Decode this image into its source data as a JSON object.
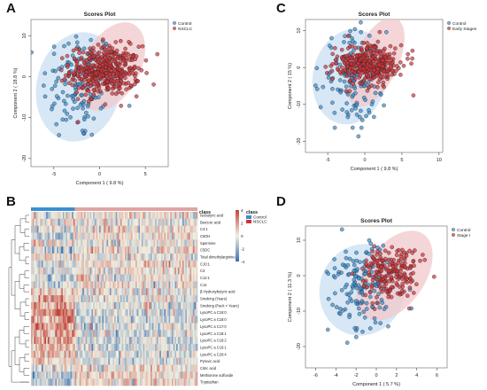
{
  "panels": {
    "a": {
      "letter": "A"
    },
    "b": {
      "letter": "B"
    },
    "c": {
      "letter": "C"
    },
    "d": {
      "letter": "D"
    }
  },
  "colors": {
    "control": "#3a8fd0",
    "case": "#d0343a",
    "control_ellipse": "#c9dff3",
    "case_ellipse": "#f2c8cb",
    "heat_low": "#3a6fb0",
    "heat_mid": "#f2efe0",
    "heat_high": "#c1443a"
  },
  "chart_data": [
    {
      "id": "A",
      "type": "scatter",
      "title": "Scores Plot",
      "xlabel": "Component 1 ( 9.8 %)",
      "ylabel": "Component 2 ( 18.8 %)",
      "xlim": [
        -7.5,
        7.5
      ],
      "ylim": [
        -22,
        14
      ],
      "xticks": [
        -5,
        0,
        5
      ],
      "yticks": [
        -20,
        -10,
        0,
        10
      ],
      "legend_position": "top-right",
      "series": [
        {
          "name": "Control",
          "count": 130,
          "center": [
            -2.3,
            -2.0
          ],
          "spread": [
            2.0,
            7.0
          ]
        },
        {
          "name": "NSCLC",
          "count": 420,
          "center": [
            0.6,
            1.5
          ],
          "spread": [
            1.9,
            3.0
          ]
        }
      ],
      "ellipses": [
        {
          "series": "Control",
          "center": [
            -2.3,
            -2.5
          ],
          "rx": 4.6,
          "ry": 13.5,
          "angle": 12
        },
        {
          "series": "NSCLC",
          "center": [
            1.3,
            2.5
          ],
          "rx": 5.2,
          "ry": 7.0,
          "angle": -62
        }
      ]
    },
    {
      "id": "C",
      "type": "scatter",
      "title": "Scores Plot",
      "xlabel": "Component 1 ( 9.8 %)",
      "ylabel": "Component 2 ( 15 %)",
      "xlim": [
        -8,
        10.5
      ],
      "ylim": [
        -23,
        13
      ],
      "xticks": [
        -5,
        0,
        5,
        10
      ],
      "yticks": [
        -20,
        -10,
        0,
        10
      ],
      "legend_position": "top-right",
      "series": [
        {
          "name": "Control",
          "count": 140,
          "center": [
            -1.7,
            -3.0
          ],
          "spread": [
            2.1,
            6.5
          ]
        },
        {
          "name": "Early Stages",
          "count": 360,
          "center": [
            0.6,
            0.8
          ],
          "spread": [
            2.2,
            2.5
          ]
        }
      ],
      "ellipses": [
        {
          "series": "Control",
          "center": [
            -2.0,
            -2.5
          ],
          "rx": 5.0,
          "ry": 13.0,
          "angle": 12
        },
        {
          "series": "Early Stages",
          "center": [
            1.5,
            1.5
          ],
          "rx": 6.5,
          "ry": 6.0,
          "angle": -65
        }
      ]
    },
    {
      "id": "D",
      "type": "scatter",
      "title": "Scores Plot",
      "xlabel": "Component 1 ( 5.7 %)",
      "ylabel": "Component 2 ( 11.3 %)",
      "xlim": [
        -7,
        7
      ],
      "ylim": [
        -26,
        14
      ],
      "xticks": [
        -6,
        -4,
        -2,
        0,
        2,
        4,
        6
      ],
      "yticks": [
        -20,
        -10,
        0,
        10
      ],
      "legend_position": "top-right",
      "series": [
        {
          "name": "Control",
          "count": 150,
          "center": [
            -1.4,
            -3.5
          ],
          "spread": [
            1.6,
            6.0
          ]
        },
        {
          "name": "Stage I",
          "count": 200,
          "center": [
            1.4,
            0.5
          ],
          "spread": [
            1.6,
            3.8
          ]
        }
      ],
      "ellipses": [
        {
          "series": "Control",
          "center": [
            -1.4,
            -4.0
          ],
          "rx": 4.2,
          "ry": 13.0,
          "angle": 18
        },
        {
          "series": "Stage I",
          "center": [
            1.8,
            0.0
          ],
          "rx": 5.0,
          "ry": 8.5,
          "angle": -55
        }
      ]
    },
    {
      "id": "B",
      "type": "heatmap",
      "legend_title": "class",
      "rows": [
        "Isobutyric acid",
        "Benzoic acid",
        "C4:1",
        "C6OH",
        "Spermine",
        "C5DC",
        "Total dimethylarginine",
        "C10:1",
        "C3",
        "C12:1",
        "C14",
        "β-Hydroxybutyric acid",
        "Smoking (Years)",
        "Smoking (Pack × Years)",
        "LysoPC a C16:0",
        "LysoPC a C18:0",
        "LysoPC a C17:0",
        "LysoPC a C18:1",
        "LysoPC a C18:2",
        "LysoPC a C16:1",
        "LysoPC a C20:4",
        "Pyruvic acid",
        "Citric acid",
        "Methionine sulfoxide",
        "Tryptophan"
      ],
      "class_levels": [
        "Control",
        "NSCLC"
      ],
      "class_fraction_control": 0.26,
      "row_pattern": [
        -0.15,
        0.1,
        -0.1,
        -0.2,
        0.1,
        -0.25,
        0.2,
        -0.2,
        -0.15,
        -0.1,
        -0.2,
        0.1,
        0.3,
        0.3,
        0.55,
        0.5,
        0.55,
        0.45,
        0.45,
        0.4,
        0.35,
        0.2,
        -0.1,
        -0.3,
        -0.35
      ],
      "colorbar": {
        "title": "class",
        "ticks": [
          4,
          2,
          0,
          -2,
          -4
        ],
        "range": [
          -4,
          4
        ]
      }
    }
  ]
}
